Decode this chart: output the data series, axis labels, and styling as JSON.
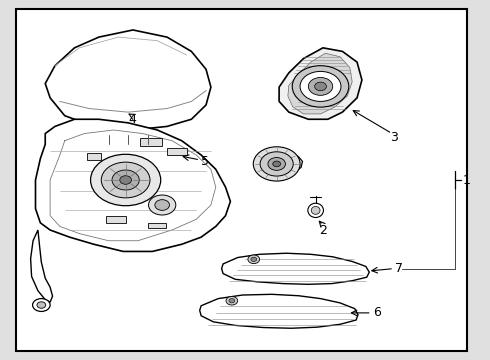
{
  "background_color": "#e0e0e0",
  "border_color": "#000000",
  "line_color": "#000000",
  "fig_width": 4.9,
  "fig_height": 3.6,
  "dpi": 100
}
